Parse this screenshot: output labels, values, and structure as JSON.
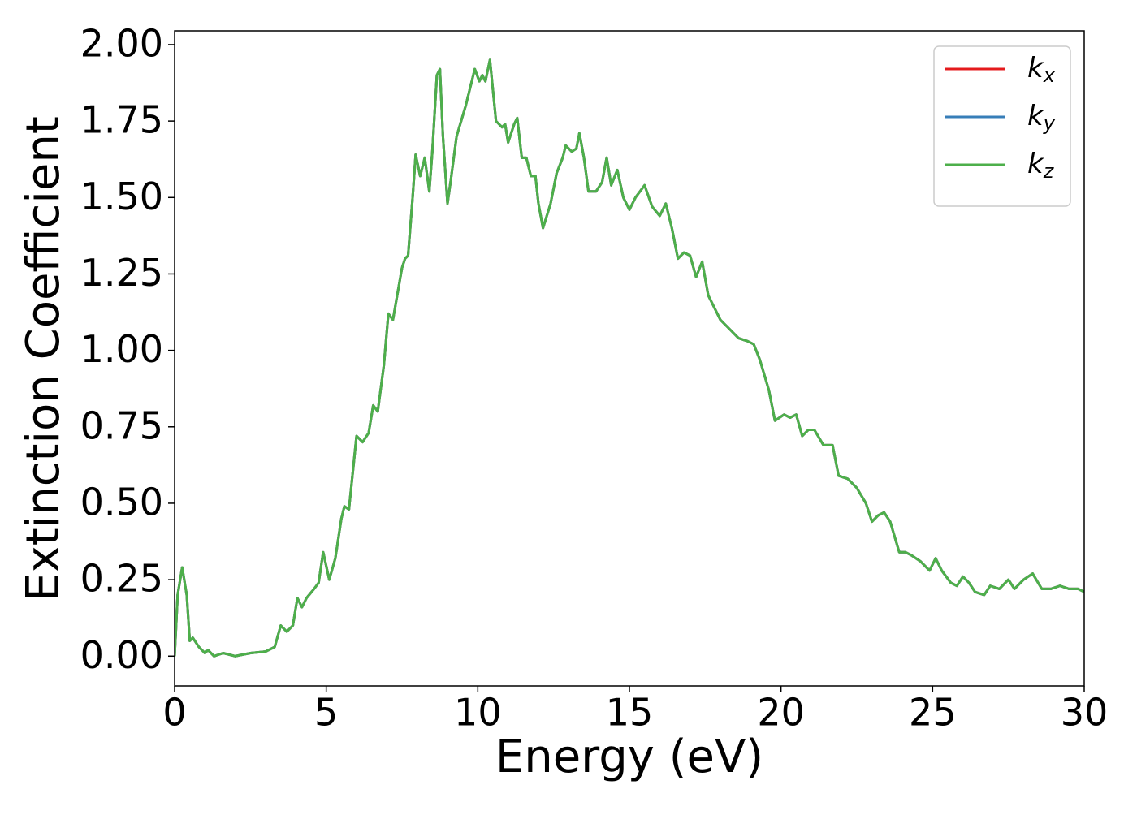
{
  "chart_data": {
    "type": "line",
    "x_label": "Energy (eV)",
    "y_label": "Extinction Coefficient",
    "xlim": [
      0,
      30
    ],
    "xticks": [
      0,
      5,
      10,
      15,
      20,
      25,
      30
    ],
    "ylim": [
      -0.0975,
      2.045
    ],
    "yticks": [
      {
        "value": 0,
        "label": "0.00"
      },
      {
        "value": 0.25,
        "label": "0.25"
      },
      {
        "value": 0.5,
        "label": "0.50"
      },
      {
        "value": 0.75,
        "label": "0.75"
      },
      {
        "value": 1,
        "label": "1.00"
      },
      {
        "value": 1.25,
        "label": "1.25"
      },
      {
        "value": 1.5,
        "label": "1.50"
      },
      {
        "value": 1.75,
        "label": "1.75"
      },
      {
        "value": 2,
        "label": "2.00"
      }
    ],
    "legend": "upper right",
    "x": [
      0,
      0.1,
      0.25,
      0.4,
      0.5,
      0.6,
      0.8,
      1.0,
      1.1,
      1.3,
      1.6,
      2.0,
      2.5,
      3.0,
      3.3,
      3.5,
      3.7,
      3.9,
      4.05,
      4.2,
      4.35,
      4.6,
      4.75,
      4.9,
      5.1,
      5.3,
      5.5,
      5.6,
      5.75,
      6.0,
      6.2,
      6.4,
      6.55,
      6.7,
      6.9,
      7.05,
      7.2,
      7.5,
      7.6,
      7.7,
      7.85,
      7.95,
      8.1,
      8.25,
      8.4,
      8.5,
      8.65,
      8.75,
      8.85,
      9.0,
      9.1,
      9.3,
      9.6,
      9.9,
      10.05,
      10.15,
      10.25,
      10.4,
      10.6,
      10.8,
      10.9,
      11.0,
      11.2,
      11.3,
      11.45,
      11.6,
      11.75,
      11.9,
      12.0,
      12.15,
      12.4,
      12.6,
      12.8,
      12.9,
      13.1,
      13.25,
      13.35,
      13.5,
      13.65,
      13.9,
      14.1,
      14.25,
      14.4,
      14.6,
      14.8,
      15.0,
      15.2,
      15.5,
      15.75,
      16.0,
      16.2,
      16.4,
      16.6,
      16.8,
      17.0,
      17.2,
      17.4,
      17.6,
      17.8,
      18.0,
      18.3,
      18.6,
      18.9,
      19.1,
      19.3,
      19.6,
      19.8,
      20.1,
      20.3,
      20.5,
      20.7,
      20.9,
      21.1,
      21.4,
      21.7,
      21.9,
      22.2,
      22.5,
      22.8,
      23.0,
      23.2,
      23.4,
      23.6,
      23.9,
      24.1,
      24.3,
      24.6,
      24.9,
      25.1,
      25.3,
      25.6,
      25.8,
      26.0,
      26.2,
      26.4,
      26.7,
      26.9,
      27.2,
      27.5,
      27.7,
      28.0,
      28.3,
      28.6,
      28.9,
      29.2,
      29.5,
      29.8,
      30.0
    ],
    "series": [
      {
        "name": "kx",
        "color": "#e41a1c",
        "values": [
          0.0,
          0.2,
          0.29,
          0.2,
          0.05,
          0.06,
          0.03,
          0.01,
          0.02,
          0.0,
          0.01,
          0.0,
          0.01,
          0.015,
          0.03,
          0.1,
          0.08,
          0.1,
          0.19,
          0.16,
          0.19,
          0.22,
          0.24,
          0.34,
          0.25,
          0.32,
          0.45,
          0.49,
          0.48,
          0.72,
          0.7,
          0.73,
          0.82,
          0.8,
          0.95,
          1.12,
          1.1,
          1.27,
          1.3,
          1.31,
          1.5,
          1.64,
          1.57,
          1.63,
          1.52,
          1.65,
          1.9,
          1.92,
          1.7,
          1.48,
          1.55,
          1.7,
          1.8,
          1.92,
          1.88,
          1.9,
          1.88,
          1.95,
          1.75,
          1.73,
          1.74,
          1.68,
          1.74,
          1.76,
          1.63,
          1.63,
          1.57,
          1.57,
          1.48,
          1.4,
          1.48,
          1.58,
          1.63,
          1.67,
          1.65,
          1.66,
          1.71,
          1.63,
          1.52,
          1.52,
          1.55,
          1.63,
          1.54,
          1.59,
          1.5,
          1.46,
          1.5,
          1.54,
          1.47,
          1.44,
          1.48,
          1.4,
          1.3,
          1.32,
          1.31,
          1.24,
          1.29,
          1.18,
          1.14,
          1.1,
          1.07,
          1.04,
          1.03,
          1.02,
          0.97,
          0.87,
          0.77,
          0.79,
          0.78,
          0.79,
          0.72,
          0.74,
          0.74,
          0.69,
          0.69,
          0.59,
          0.58,
          0.55,
          0.5,
          0.44,
          0.46,
          0.47,
          0.44,
          0.34,
          0.34,
          0.33,
          0.31,
          0.28,
          0.32,
          0.28,
          0.24,
          0.23,
          0.26,
          0.24,
          0.21,
          0.2,
          0.23,
          0.22,
          0.25,
          0.22,
          0.25,
          0.27,
          0.22,
          0.22,
          0.23,
          0.22,
          0.22,
          0.21
        ]
      },
      {
        "name": "ky",
        "color": "#377eb8",
        "values": [
          0.0,
          0.2,
          0.29,
          0.2,
          0.05,
          0.06,
          0.03,
          0.01,
          0.02,
          0.0,
          0.01,
          0.0,
          0.01,
          0.015,
          0.03,
          0.1,
          0.08,
          0.1,
          0.19,
          0.16,
          0.19,
          0.22,
          0.24,
          0.34,
          0.25,
          0.32,
          0.45,
          0.49,
          0.48,
          0.72,
          0.7,
          0.73,
          0.82,
          0.8,
          0.95,
          1.12,
          1.1,
          1.27,
          1.3,
          1.31,
          1.5,
          1.64,
          1.57,
          1.63,
          1.52,
          1.65,
          1.9,
          1.92,
          1.7,
          1.48,
          1.55,
          1.7,
          1.8,
          1.92,
          1.88,
          1.9,
          1.88,
          1.95,
          1.75,
          1.73,
          1.74,
          1.68,
          1.74,
          1.76,
          1.63,
          1.63,
          1.57,
          1.57,
          1.48,
          1.4,
          1.48,
          1.58,
          1.63,
          1.67,
          1.65,
          1.66,
          1.71,
          1.63,
          1.52,
          1.52,
          1.55,
          1.63,
          1.54,
          1.59,
          1.5,
          1.46,
          1.5,
          1.54,
          1.47,
          1.44,
          1.48,
          1.4,
          1.3,
          1.32,
          1.31,
          1.24,
          1.29,
          1.18,
          1.14,
          1.1,
          1.07,
          1.04,
          1.03,
          1.02,
          0.97,
          0.87,
          0.77,
          0.79,
          0.78,
          0.79,
          0.72,
          0.74,
          0.74,
          0.69,
          0.69,
          0.59,
          0.58,
          0.55,
          0.5,
          0.44,
          0.46,
          0.47,
          0.44,
          0.34,
          0.34,
          0.33,
          0.31,
          0.28,
          0.32,
          0.28,
          0.24,
          0.23,
          0.26,
          0.24,
          0.21,
          0.2,
          0.23,
          0.22,
          0.25,
          0.22,
          0.25,
          0.27,
          0.22,
          0.22,
          0.23,
          0.22,
          0.22,
          0.21
        ]
      },
      {
        "name": "kz",
        "color": "#4daf4a",
        "values": [
          0.0,
          0.2,
          0.29,
          0.2,
          0.05,
          0.06,
          0.03,
          0.01,
          0.02,
          0.0,
          0.01,
          0.0,
          0.01,
          0.015,
          0.03,
          0.1,
          0.08,
          0.1,
          0.19,
          0.16,
          0.19,
          0.22,
          0.24,
          0.34,
          0.25,
          0.32,
          0.45,
          0.49,
          0.48,
          0.72,
          0.7,
          0.73,
          0.82,
          0.8,
          0.95,
          1.12,
          1.1,
          1.27,
          1.3,
          1.31,
          1.5,
          1.64,
          1.57,
          1.63,
          1.52,
          1.65,
          1.9,
          1.92,
          1.7,
          1.48,
          1.55,
          1.7,
          1.8,
          1.92,
          1.88,
          1.9,
          1.88,
          1.95,
          1.75,
          1.73,
          1.74,
          1.68,
          1.74,
          1.76,
          1.63,
          1.63,
          1.57,
          1.57,
          1.48,
          1.4,
          1.48,
          1.58,
          1.63,
          1.67,
          1.65,
          1.66,
          1.71,
          1.63,
          1.52,
          1.52,
          1.55,
          1.63,
          1.54,
          1.59,
          1.5,
          1.46,
          1.5,
          1.54,
          1.47,
          1.44,
          1.48,
          1.4,
          1.3,
          1.32,
          1.31,
          1.24,
          1.29,
          1.18,
          1.14,
          1.1,
          1.07,
          1.04,
          1.03,
          1.02,
          0.97,
          0.87,
          0.77,
          0.79,
          0.78,
          0.79,
          0.72,
          0.74,
          0.74,
          0.69,
          0.69,
          0.59,
          0.58,
          0.55,
          0.5,
          0.44,
          0.46,
          0.47,
          0.44,
          0.34,
          0.34,
          0.33,
          0.31,
          0.28,
          0.32,
          0.28,
          0.24,
          0.23,
          0.26,
          0.24,
          0.21,
          0.2,
          0.23,
          0.22,
          0.25,
          0.22,
          0.25,
          0.27,
          0.22,
          0.22,
          0.23,
          0.22,
          0.22,
          0.21
        ]
      }
    ]
  }
}
